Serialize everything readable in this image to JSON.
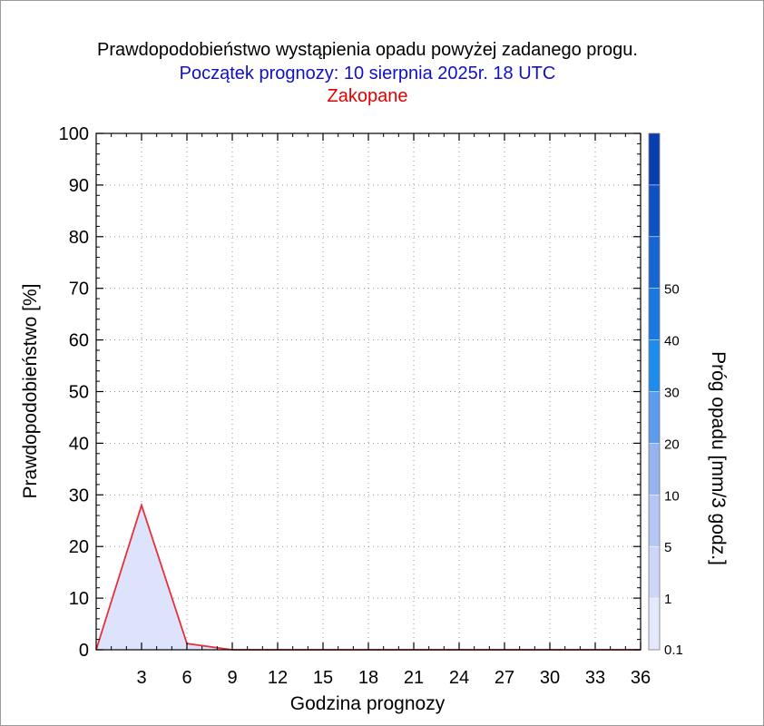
{
  "chart_data": {
    "type": "area",
    "title": "Prawdopodobieństwo wystąpienia opadu powyżej zadanego progu.",
    "subtitle": "Początek prognozy: 10 sierpnia 2025r. 18 UTC",
    "location": "Zakopane",
    "xlabel": "Godzina prognozy",
    "ylabel": "Prawdopodobieństwo [%]",
    "xlim": [
      0,
      36
    ],
    "ylim": [
      0,
      100
    ],
    "x_ticks": [
      3,
      6,
      9,
      12,
      15,
      18,
      21,
      24,
      27,
      30,
      33,
      36
    ],
    "y_ticks": [
      0,
      10,
      20,
      30,
      40,
      50,
      60,
      70,
      80,
      90,
      100
    ],
    "grid": true,
    "series": [
      {
        "threshold": "0.1",
        "line_color": "#e8303a",
        "fill_color": "#dde3fb",
        "x": [
          0,
          3,
          6,
          9,
          12,
          15,
          18,
          21,
          24,
          27,
          30,
          33,
          36
        ],
        "y": [
          0,
          28,
          1.2,
          0,
          0,
          0,
          0,
          0,
          0,
          0,
          0,
          0,
          0
        ]
      }
    ],
    "colorbar": {
      "label": "Próg opadu [mm/3 godz.]",
      "tick_labels": [
        "0.1",
        "1",
        "5",
        "10",
        "20",
        "30",
        "40",
        "50"
      ],
      "colors": [
        "#e3e8fb",
        "#ccd6f8",
        "#b3c6f4",
        "#96b3f0",
        "#5c9cec",
        "#1e8cec",
        "#1a78e0",
        "#1566d2",
        "#0d52c0",
        "#083fad"
      ]
    }
  }
}
